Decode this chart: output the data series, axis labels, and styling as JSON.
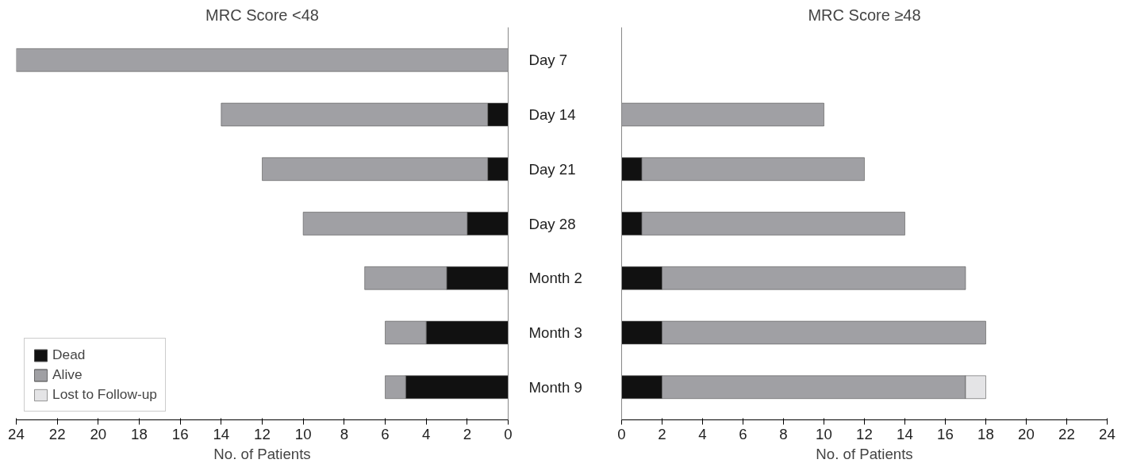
{
  "chart_data": [
    {
      "type": "bar",
      "orientation": "horizontal",
      "stacked": true,
      "title": "MRC Score <48",
      "xlabel": "No. of Patients",
      "categories": [
        "Day 7",
        "Day 14",
        "Day 21",
        "Day 28",
        "Month 2",
        "Month 3",
        "Month 9"
      ],
      "series": [
        {
          "name": "Dead",
          "color": "#111111",
          "values": [
            null,
            1,
            1,
            2,
            3,
            4,
            5
          ]
        },
        {
          "name": "Alive",
          "color": "#a0a0a4",
          "values": [
            24,
            13,
            11,
            8,
            4,
            2,
            1
          ]
        },
        {
          "name": "Lost to Follow-up",
          "color": "#e4e4e6",
          "values": [
            null,
            null,
            null,
            null,
            null,
            null,
            null
          ]
        }
      ],
      "xlim": [
        24,
        0
      ],
      "xticks": [
        0,
        2,
        4,
        6,
        8,
        10,
        12,
        14,
        16,
        18,
        20,
        22,
        24
      ],
      "grid": false,
      "legend": "bottom left"
    },
    {
      "type": "bar",
      "orientation": "horizontal",
      "stacked": true,
      "title": "MRC Score ≥48",
      "xlabel": "No. of Patients",
      "categories": [
        null,
        null,
        null,
        null,
        null,
        null,
        null
      ],
      "series": [
        {
          "color": "#111111",
          "values": [
            null,
            null,
            1,
            1,
            2,
            2,
            2
          ]
        },
        {
          "color": "#a0a0a4",
          "values": [
            null,
            10,
            11,
            13,
            15,
            16,
            15
          ]
        },
        {
          "color": "#e4e4e6",
          "values": [
            null,
            null,
            null,
            null,
            null,
            null,
            1
          ]
        }
      ],
      "xlim": [
        0,
        24
      ],
      "xticks": [
        0,
        2,
        4,
        6,
        8,
        10,
        12,
        14,
        16,
        18,
        20,
        22,
        24
      ],
      "grid": false,
      "legend": false,
      "tick_labels": "x"
    }
  ]
}
